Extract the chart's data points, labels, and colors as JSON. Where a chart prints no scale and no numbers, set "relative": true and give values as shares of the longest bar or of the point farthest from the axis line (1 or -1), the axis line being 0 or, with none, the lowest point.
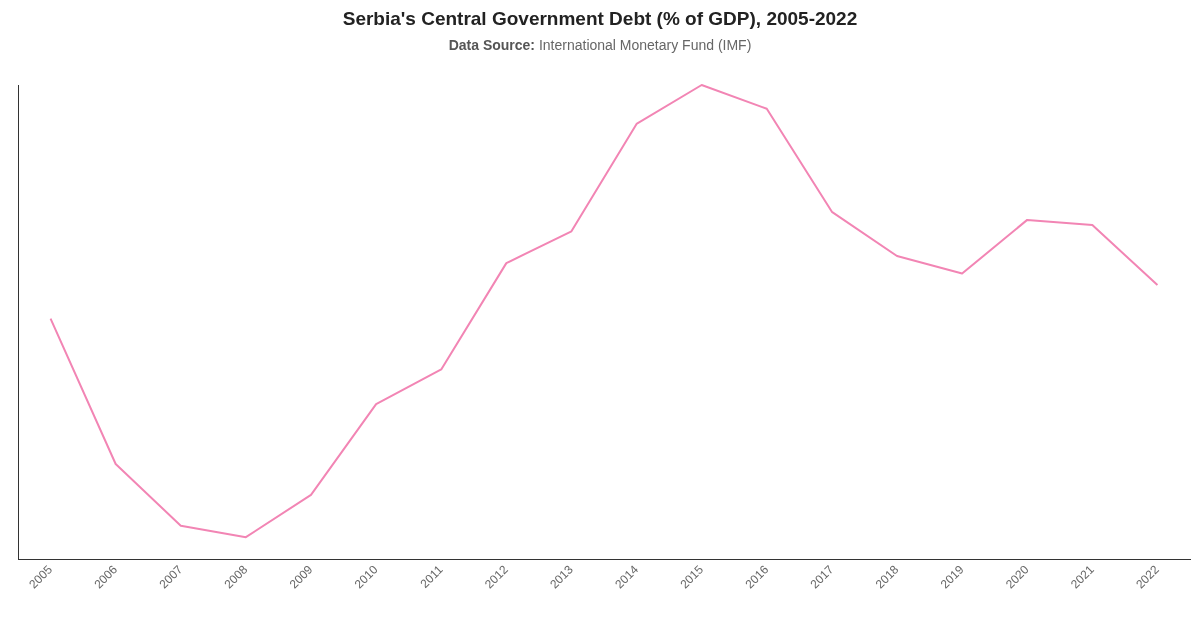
{
  "chart_data": {
    "type": "line",
    "title": "Serbia's Central Government Debt (% of GDP), 2005-2022",
    "subtitle": "Data Source: International Monetary Fund (IMF)",
    "categories": [
      "2005",
      "2006",
      "2007",
      "2008",
      "2009",
      "2010",
      "2011",
      "2012",
      "2013",
      "2014",
      "2015",
      "2016",
      "2017",
      "2018",
      "2019",
      "2020",
      "2021",
      "2022"
    ],
    "relative": true,
    "color": "#f285b4",
    "marker": "none",
    "grid": false,
    "legend": false,
    "values": [
      0.508,
      0.202,
      0.072,
      0.048,
      0.137,
      0.328,
      0.401,
      0.625,
      0.692,
      0.918,
      1,
      0.95,
      0.733,
      0.64,
      0.603,
      0.716,
      0.705,
      0.579
    ]
  }
}
